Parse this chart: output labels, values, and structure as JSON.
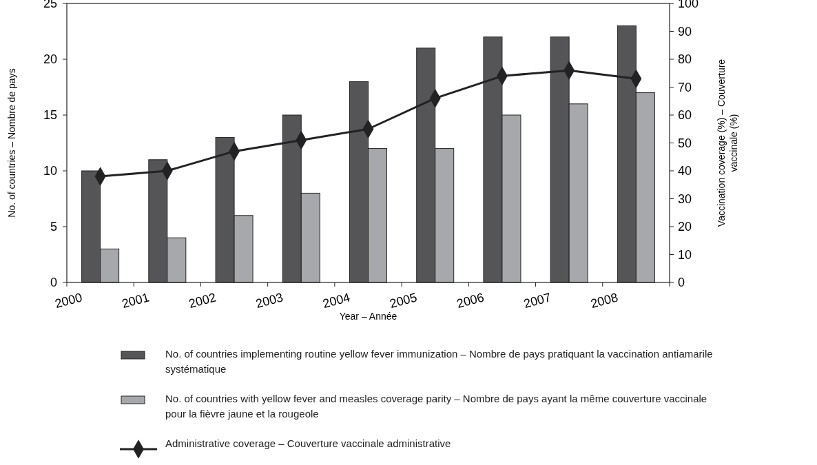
{
  "chart_data": {
    "type": "bar",
    "xlabel": "Year – Année",
    "ylabel": "No. of countries – Nombre de pays",
    "y2label": "Vaccination coverage (%) – Couverture vaccinale (%)",
    "categories": [
      "2000",
      "2001",
      "2002",
      "2003",
      "2004",
      "2005",
      "2006",
      "2007",
      "2008"
    ],
    "series": [
      {
        "name": "No. of countries implementing routine yellow fever immunization – Nombre de pays pratiquant la vaccination antiamarile systématique",
        "color": "#555558",
        "values": [
          10,
          11,
          13,
          15,
          18,
          21,
          22,
          22,
          23
        ]
      },
      {
        "name": "No. of countries with yellow fever and measles coverage parity – Nombre de pays ayant la même couverture vaccinale pour la fièvre jaune et la rougeole",
        "color": "#a7a8ab",
        "values": [
          3,
          4,
          6,
          8,
          12,
          12,
          15,
          16,
          17
        ]
      },
      {
        "name": "Administrative coverage – Couverture vaccinale administrative",
        "type": "line",
        "axis": "y2",
        "color": "#222222",
        "marker": "diamond",
        "values": [
          38,
          40,
          47,
          51,
          55,
          66,
          74,
          76,
          73
        ]
      }
    ],
    "ylim": [
      0,
      25
    ],
    "yticks": [
      0,
      5,
      10,
      15,
      20,
      25
    ],
    "y2lim": [
      0,
      100
    ],
    "y2ticks": [
      0,
      10,
      20,
      30,
      40,
      50,
      60,
      70,
      80,
      90,
      100
    ],
    "grid": false,
    "legend": "bottom"
  }
}
